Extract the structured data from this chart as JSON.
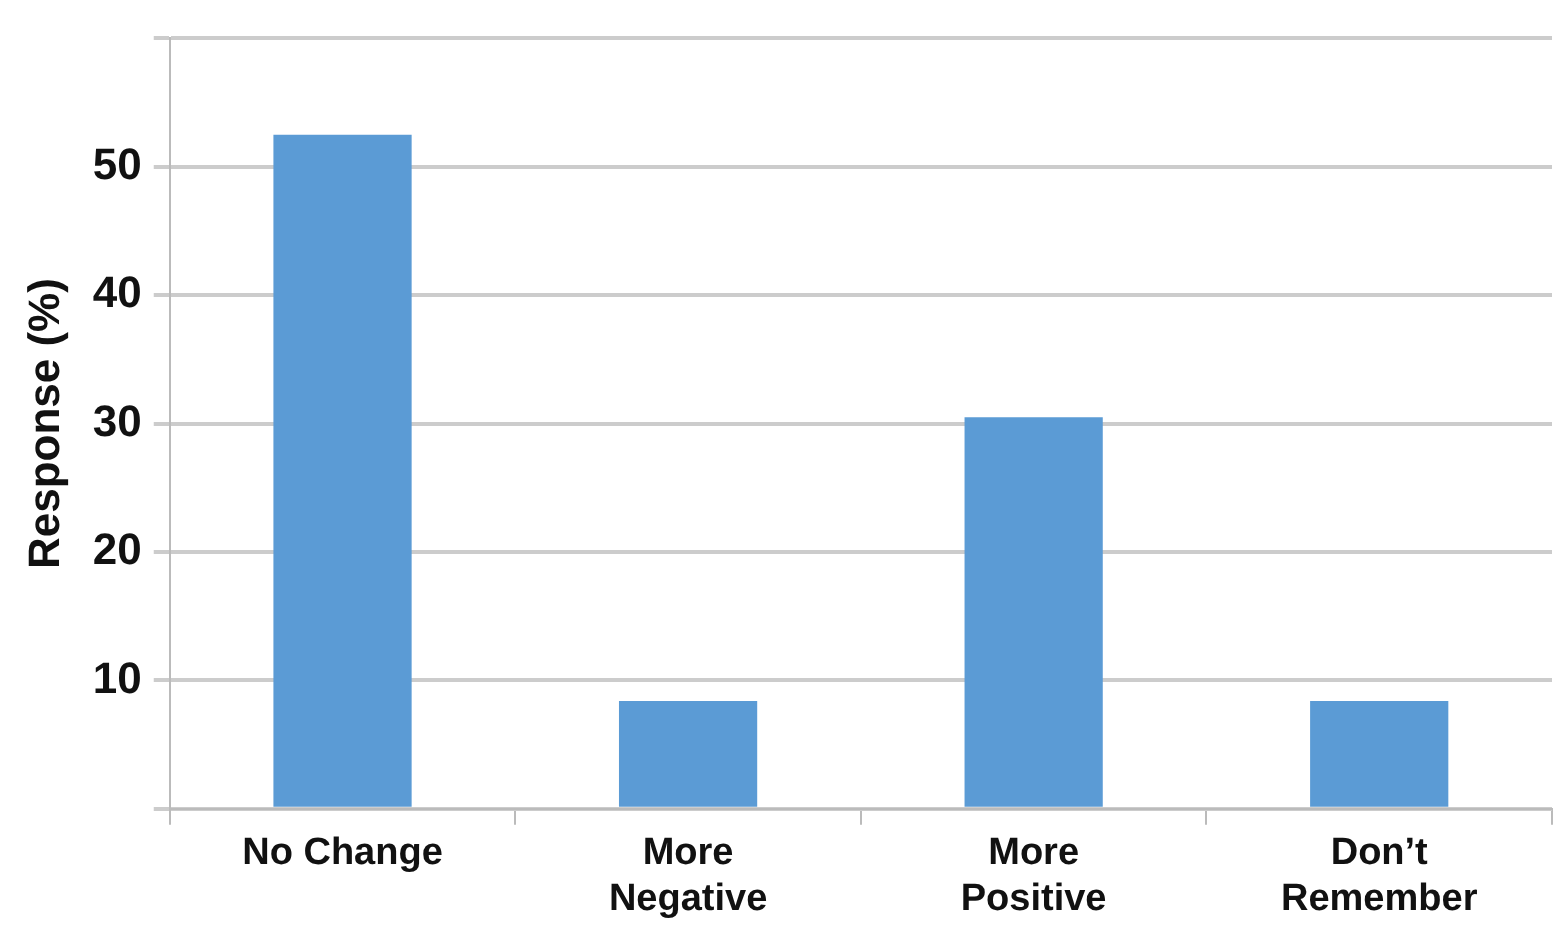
{
  "chart_data": {
    "type": "bar",
    "ylabel": "Response (%)",
    "categories": [
      "No Change",
      "More Negative",
      "More Positive",
      "Don’t Remember"
    ],
    "values": [
      52.5,
      8.4,
      30.5,
      8.4
    ],
    "color": "#5b9bd5",
    "ylim": [
      0,
      60
    ],
    "yticks": [
      {
        "value": 0,
        "label": null
      },
      10,
      20,
      30,
      40,
      50,
      {
        "value": 60,
        "label": null
      }
    ],
    "grid": "y",
    "legend": false
  }
}
